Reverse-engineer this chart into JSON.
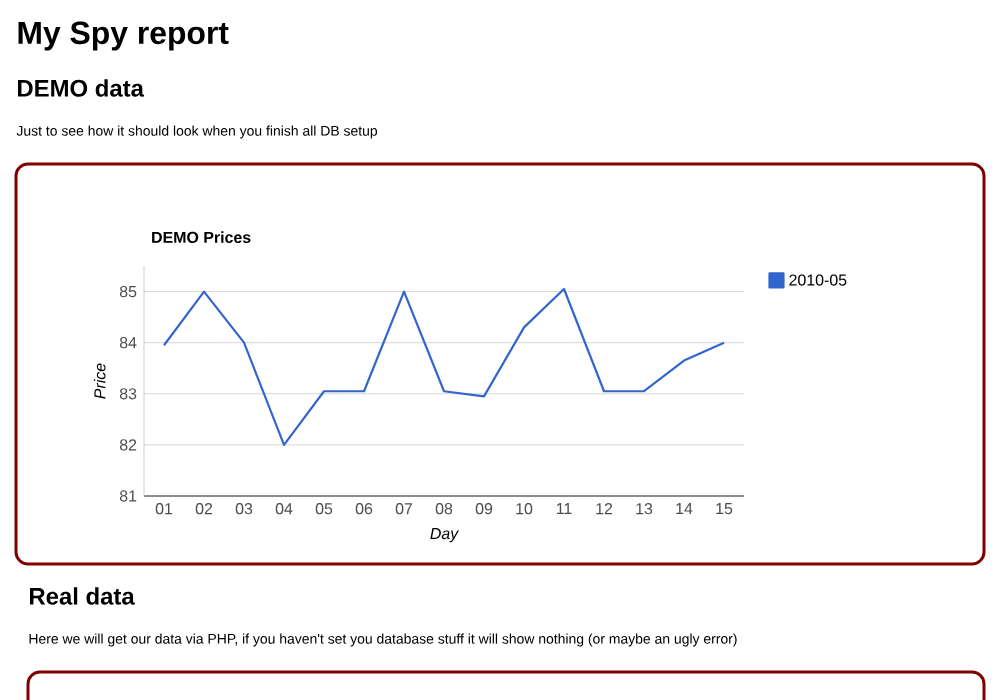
{
  "chart_data": {
    "type": "line",
    "title": "DEMO Prices",
    "xlabel": "Day",
    "ylabel": "Price",
    "categories": [
      "01",
      "02",
      "03",
      "04",
      "05",
      "06",
      "07",
      "08",
      "09",
      "10",
      "11",
      "12",
      "13",
      "14",
      "15"
    ],
    "series": [
      {
        "name": "2010-05",
        "color": "#3366cc",
        "values": [
          83.95,
          85.0,
          84.0,
          82.0,
          83.05,
          83.05,
          85.0,
          83.05,
          82.95,
          84.3,
          85.05,
          83.05,
          83.05,
          83.65,
          84.0
        ]
      }
    ],
    "ylim": [
      81,
      85.5
    ],
    "yticks": [
      81,
      82,
      83,
      84,
      85
    ],
    "grid": "y",
    "legend": "top right",
    "marker": "none",
    "line_style": "solid",
    "annotations": [
      "My Spy report",
      "DEMO data",
      "Just to see how it should look when you finish all DB setup",
      "Real data",
      "Here we will get our data via PHP, if you haven't set you database stuff it will show nothing (or maybe an ugly error)"
    ]
  }
}
